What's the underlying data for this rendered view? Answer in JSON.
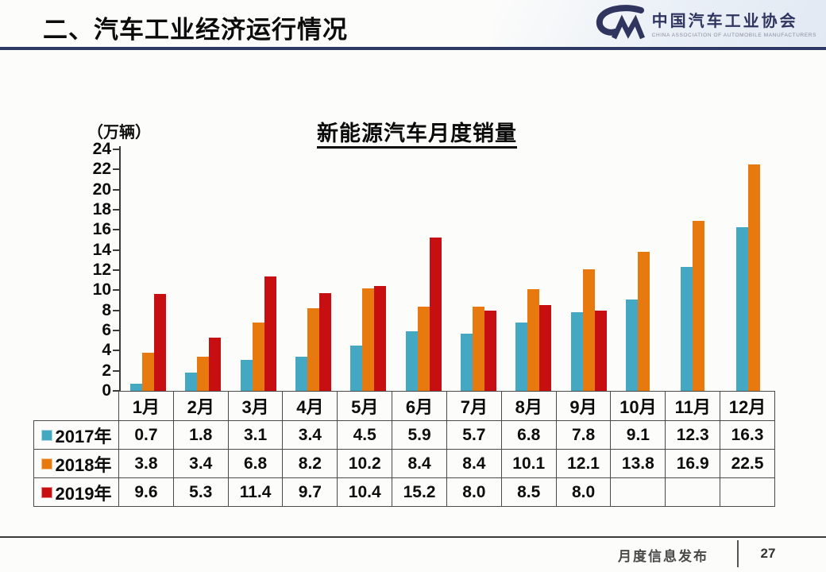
{
  "slide": {
    "title": "二、汽车工业经济运行情况",
    "footer_label": "月度信息发布",
    "page_number": "27"
  },
  "logo": {
    "org_name_cn": "中国汽车工业协会",
    "org_name_en": "CHINA ASSOCIATION OF AUTOMOBILE MANUFACTURERS",
    "color": "#2F3560"
  },
  "chart_data": {
    "type": "bar",
    "title": "新能源汽车月度销量",
    "unit_label": "（万辆）",
    "categories": [
      "1月",
      "2月",
      "3月",
      "4月",
      "5月",
      "6月",
      "7月",
      "8月",
      "9月",
      "10月",
      "11月",
      "12月"
    ],
    "series": [
      {
        "name": "2017年",
        "color": "#45A8C3",
        "values": [
          0.7,
          1.8,
          3.1,
          3.4,
          4.5,
          5.9,
          5.7,
          6.8,
          7.8,
          9.1,
          12.3,
          16.3
        ]
      },
      {
        "name": "2018年",
        "color": "#E8790E",
        "values": [
          3.8,
          3.4,
          6.8,
          8.2,
          10.2,
          8.4,
          8.4,
          10.1,
          12.1,
          13.8,
          16.9,
          22.5
        ]
      },
      {
        "name": "2019年",
        "color": "#C70F11",
        "values": [
          9.6,
          5.3,
          11.4,
          9.7,
          10.4,
          15.2,
          8.0,
          8.5,
          8.0,
          null,
          null,
          null
        ]
      }
    ],
    "ylim": [
      0,
      24
    ],
    "ytick_step": 2,
    "grid": false,
    "legend_position": "table-left",
    "value_table": true
  }
}
